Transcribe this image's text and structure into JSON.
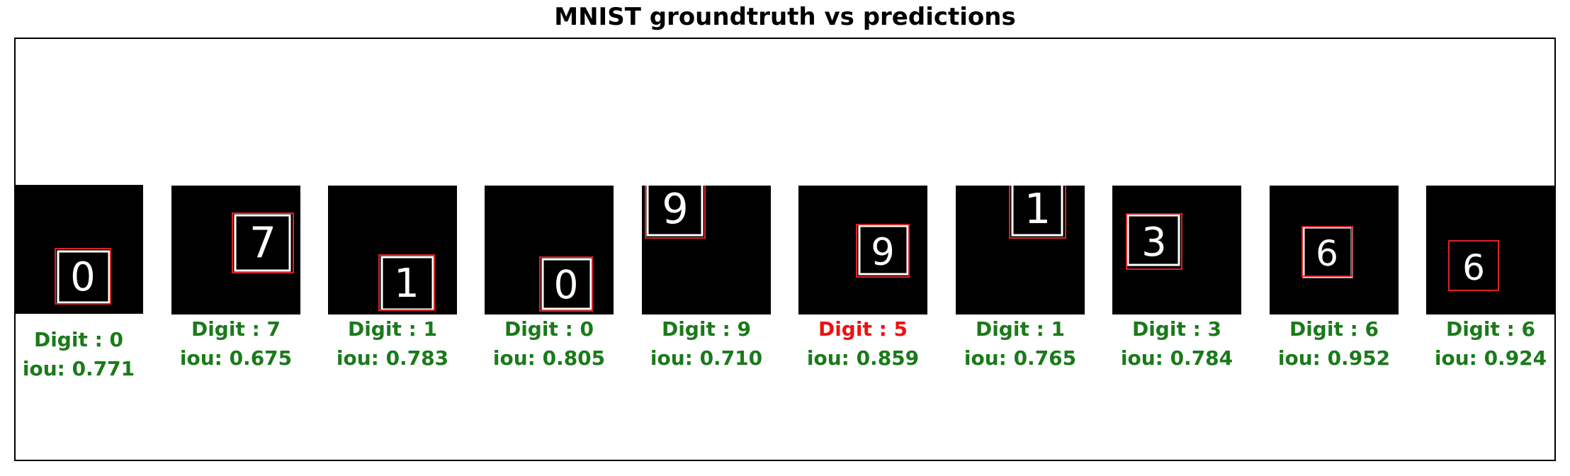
{
  "title": "MNIST groundtruth vs predictions",
  "colors": {
    "correct": "#1a7a1a",
    "incorrect": "#ee1111",
    "gt_box": "#ffffff",
    "pred_box": "#dd2222"
  },
  "samples": [
    {
      "digit_label": "Digit : 0",
      "iou_label": "iou: 0.771",
      "correct": true,
      "glyph": "0"
    },
    {
      "digit_label": "Digit : 7",
      "iou_label": "iou: 0.675",
      "correct": true,
      "glyph": "7"
    },
    {
      "digit_label": "Digit : 1",
      "iou_label": "iou: 0.783",
      "correct": true,
      "glyph": "1"
    },
    {
      "digit_label": "Digit : 0",
      "iou_label": "iou: 0.805",
      "correct": true,
      "glyph": "0"
    },
    {
      "digit_label": "Digit : 9",
      "iou_label": "iou: 0.710",
      "correct": true,
      "glyph": "9"
    },
    {
      "digit_label": "Digit : 5",
      "iou_label": "iou: 0.859",
      "correct": false,
      "glyph": "9"
    },
    {
      "digit_label": "Digit : 1",
      "iou_label": "iou: 0.765",
      "correct": true,
      "glyph": "1"
    },
    {
      "digit_label": "Digit : 3",
      "iou_label": "iou: 0.784",
      "correct": true,
      "glyph": "3"
    },
    {
      "digit_label": "Digit : 6",
      "iou_label": "iou: 0.952",
      "correct": true,
      "glyph": "6"
    },
    {
      "digit_label": "Digit : 6",
      "iou_label": "iou: 0.924",
      "correct": true,
      "glyph": "6"
    }
  ]
}
